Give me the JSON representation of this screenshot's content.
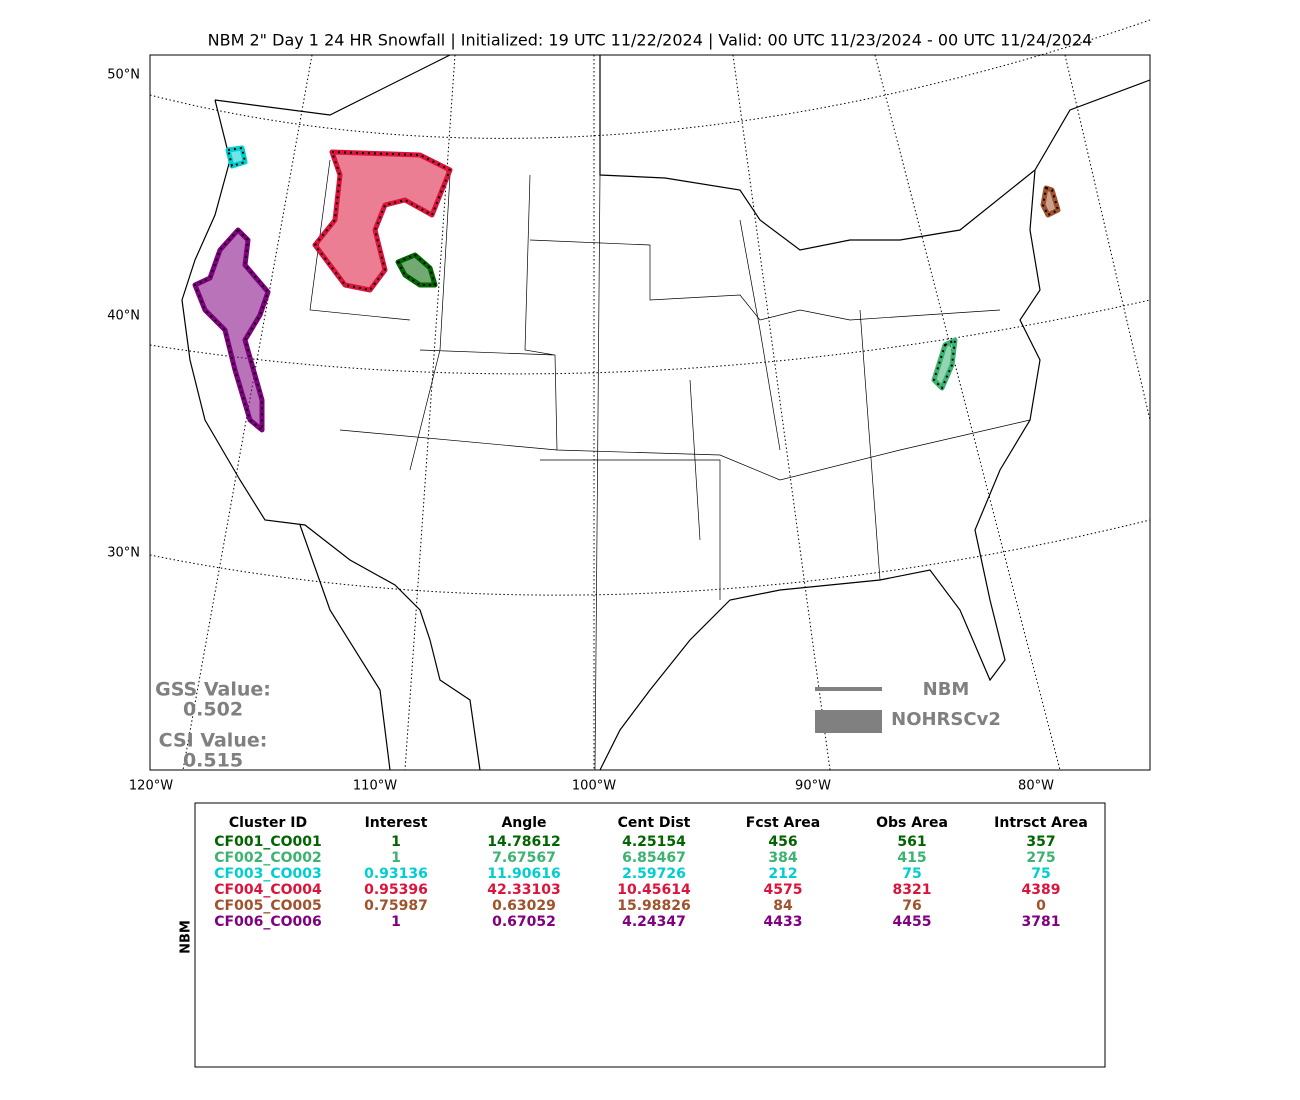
{
  "header": {
    "title": "NBM 2\" Day 1 24 HR Snowfall | Initialized: 19 UTC 11/22/2024 | Valid: 00 UTC 11/23/2024 - 00 UTC 11/24/2024"
  },
  "map": {
    "lat_labels": [
      "50°N",
      "40°N",
      "30°N"
    ],
    "lon_labels": [
      "120°W",
      "110°W",
      "100°W",
      "90°W",
      "80°W"
    ],
    "scores": [
      {
        "label": "GSS Value:",
        "value": "0.502"
      },
      {
        "label": "CSI Value:",
        "value": "0.515"
      }
    ],
    "legend": [
      "NBM",
      "NOHRSCv2"
    ]
  },
  "table": {
    "side_label": "NBM",
    "columns": [
      "Cluster ID",
      "Interest",
      "Angle",
      "Cent Dist",
      "Fcst Area",
      "Obs Area",
      "Intrsct Area"
    ],
    "rows": [
      {
        "color": "#006400",
        "cells": [
          "CF001_CO001",
          1,
          14.78612,
          4.25154,
          456,
          561,
          357
        ]
      },
      {
        "color": "#3cb371",
        "cells": [
          "CF002_CO002",
          1,
          7.67567,
          6.85467,
          384,
          415,
          275
        ]
      },
      {
        "color": "#00ced1",
        "cells": [
          "CF003_CO003",
          0.93136,
          11.90616,
          2.59726,
          212,
          75,
          75
        ]
      },
      {
        "color": "#dc143c",
        "cells": [
          "CF004_CO004",
          0.95396,
          42.33103,
          10.45614,
          4575,
          8321,
          4389
        ]
      },
      {
        "color": "#a0522d",
        "cells": [
          "CF005_CO005",
          0.75987,
          0.63029,
          15.98826,
          84,
          76,
          0
        ]
      },
      {
        "color": "#800080",
        "cells": [
          "CF006_CO006",
          1,
          0.67052,
          4.24347,
          4433,
          4455,
          3781
        ]
      }
    ]
  }
}
